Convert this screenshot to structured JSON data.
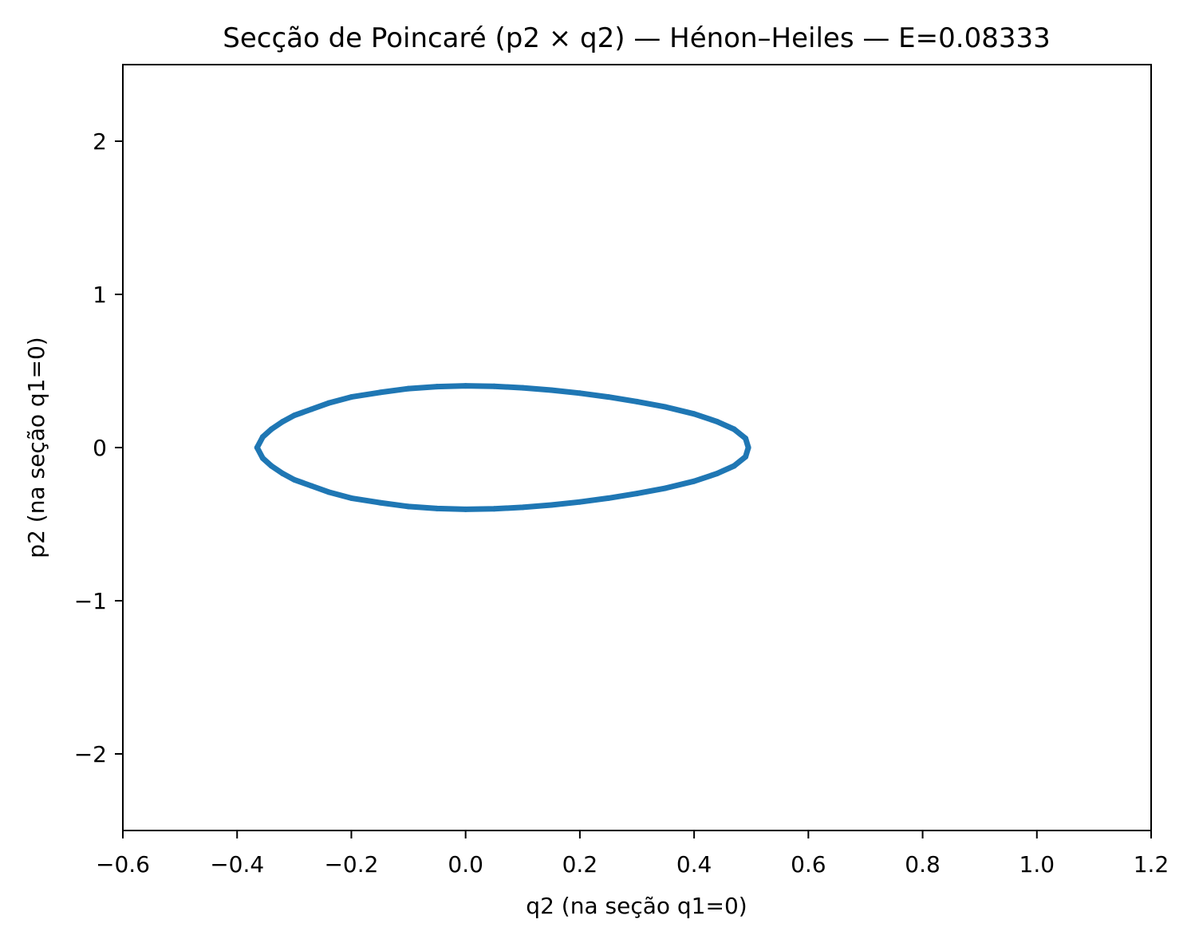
{
  "chart_data": {
    "type": "scatter",
    "title": "Secção de Poincaré (p2 × q2) — Hénon–Heiles — E=0.08333",
    "xlabel": "q2 (na seção q1=0)",
    "ylabel": "p2 (na seção q1=0)",
    "xlim": [
      -0.6,
      1.2
    ],
    "ylim": [
      -2.5,
      2.5
    ],
    "xticks": [
      -0.6,
      -0.4,
      -0.2,
      0.0,
      0.2,
      0.4,
      0.6,
      0.8,
      1.0,
      1.2
    ],
    "xtick_labels": [
      "−0.6",
      "−0.4",
      "−0.2",
      "0.0",
      "0.2",
      "0.4",
      "0.6",
      "0.8",
      "1.0",
      "1.2"
    ],
    "yticks": [
      -2,
      -1,
      0,
      1,
      2
    ],
    "ytick_labels": [
      "−2",
      "−1",
      "0",
      "1",
      "2"
    ],
    "grid": false,
    "legend": "none",
    "series": [
      {
        "color": "#1f77b4",
        "marker": "dot",
        "x": [
          -0.365,
          -0.355,
          -0.34,
          -0.32,
          -0.3,
          -0.27,
          -0.24,
          -0.2,
          -0.15,
          -0.1,
          -0.05,
          0.0,
          0.05,
          0.1,
          0.15,
          0.2,
          0.25,
          0.3,
          0.35,
          0.4,
          0.44,
          0.47,
          0.49,
          0.495,
          0.49,
          0.47,
          0.44,
          0.4,
          0.35,
          0.3,
          0.25,
          0.2,
          0.15,
          0.1,
          0.05,
          0.0,
          -0.05,
          -0.1,
          -0.15,
          -0.2,
          -0.24,
          -0.27,
          -0.3,
          -0.32,
          -0.34,
          -0.355,
          -0.365
        ],
        "y": [
          0.0,
          0.07,
          0.12,
          0.17,
          0.21,
          0.25,
          0.29,
          0.33,
          0.36,
          0.385,
          0.398,
          0.403,
          0.4,
          0.39,
          0.375,
          0.355,
          0.33,
          0.3,
          0.265,
          0.22,
          0.17,
          0.12,
          0.06,
          0.0,
          -0.06,
          -0.12,
          -0.17,
          -0.22,
          -0.265,
          -0.3,
          -0.33,
          -0.355,
          -0.375,
          -0.39,
          -0.4,
          -0.403,
          -0.398,
          -0.385,
          -0.36,
          -0.33,
          -0.29,
          -0.25,
          -0.21,
          -0.17,
          -0.12,
          -0.07,
          0.0
        ]
      }
    ]
  }
}
